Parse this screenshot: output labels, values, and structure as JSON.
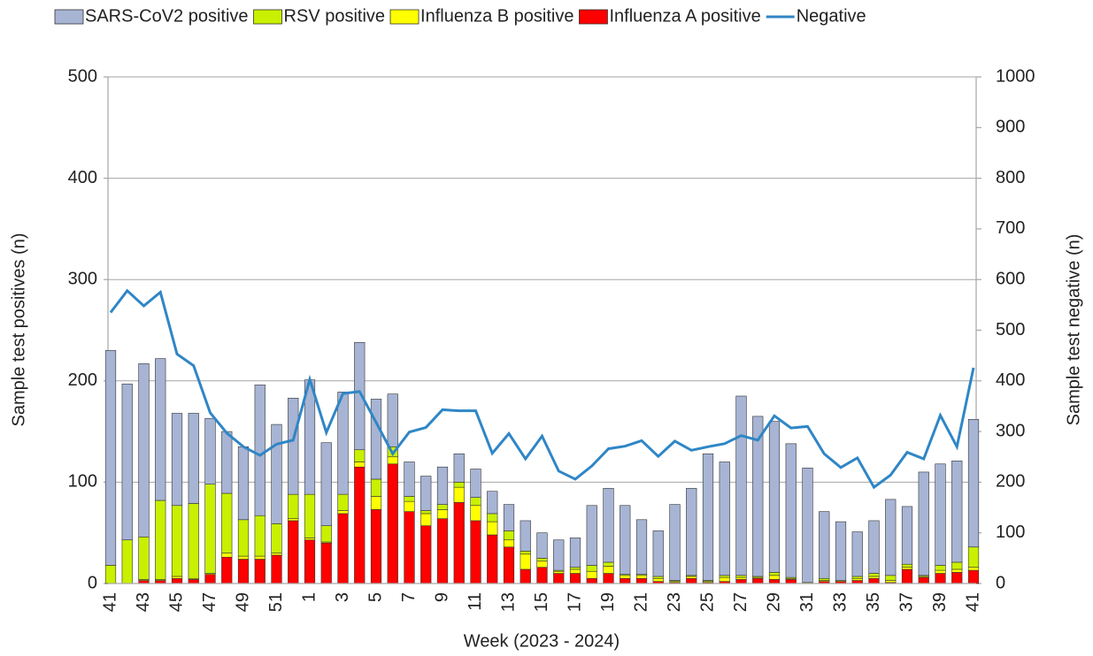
{
  "chart_data": {
    "type": "bar",
    "stacked": true,
    "x_label": "Week (2023 - 2024)",
    "y_label": "Sample test positives (n)",
    "y2_label": "Sample test negative (n)",
    "categories": [
      "41",
      null,
      "43",
      null,
      "45",
      null,
      "47",
      null,
      "49",
      null,
      "51",
      null,
      "1",
      null,
      "3",
      null,
      "5",
      null,
      "7",
      null,
      "9",
      null,
      "11",
      null,
      "13",
      null,
      "15",
      null,
      "17",
      null,
      "19",
      null,
      "21",
      null,
      "23",
      null,
      "25",
      null,
      "27",
      null,
      "29",
      null,
      "31",
      null,
      "33",
      null,
      "35",
      null,
      "37",
      null,
      "39",
      null,
      "41"
    ],
    "series": [
      {
        "name": "SARS-CoV2 positive",
        "color": "#a7b4d4",
        "values": [
          212,
          154,
          171,
          140,
          91,
          89,
          65,
          61,
          72,
          129,
          98,
          95,
          113,
          82,
          101,
          106,
          79,
          52,
          34,
          34,
          37,
          28,
          28,
          22,
          26,
          30,
          25,
          30,
          29,
          59,
          73,
          68,
          54,
          45,
          75,
          86,
          125,
          112,
          177,
          158,
          149,
          132,
          113,
          66,
          58,
          44,
          52,
          75,
          57,
          102,
          100,
          100,
          126
        ]
      },
      {
        "name": "RSV positive",
        "color": "#c8f000",
        "values": [
          18,
          43,
          42,
          78,
          70,
          74,
          88,
          59,
          36,
          40,
          29,
          24,
          43,
          16,
          16,
          12,
          17,
          10,
          5,
          3,
          5,
          5,
          8,
          8,
          9,
          3,
          3,
          1,
          2,
          6,
          4,
          1,
          1,
          2,
          1,
          1,
          1,
          2,
          2,
          1,
          3,
          1,
          1,
          2,
          1,
          2,
          3,
          5,
          3,
          1,
          5,
          7,
          20
        ]
      },
      {
        "name": "Influenza B positive",
        "color": "#ffff00",
        "values": [
          0,
          0,
          1,
          1,
          2,
          1,
          1,
          4,
          3,
          3,
          2,
          2,
          2,
          1,
          3,
          5,
          13,
          7,
          10,
          12,
          9,
          15,
          15,
          13,
          7,
          15,
          6,
          2,
          4,
          7,
          7,
          3,
          3,
          3,
          1,
          2,
          1,
          4,
          2,
          1,
          4,
          1,
          0,
          1,
          0,
          2,
          2,
          2,
          2,
          1,
          3,
          3,
          3
        ]
      },
      {
        "name": "Influenza A positive",
        "color": "#ff0000",
        "values": [
          0,
          0,
          3,
          3,
          5,
          4,
          9,
          26,
          24,
          24,
          28,
          62,
          43,
          40,
          69,
          115,
          73,
          118,
          71,
          57,
          64,
          80,
          62,
          48,
          36,
          14,
          16,
          10,
          10,
          5,
          10,
          5,
          5,
          2,
          1,
          5,
          1,
          2,
          4,
          5,
          4,
          4,
          0,
          2,
          2,
          3,
          5,
          1,
          14,
          6,
          10,
          11,
          13
        ]
      },
      {
        "name": "Negative",
        "color": "#2f86c6",
        "axis": "y2",
        "values": [
          535,
          578,
          548,
          575,
          453,
          430,
          337,
          297,
          270,
          253,
          275,
          283,
          403,
          298,
          375,
          379,
          318,
          256,
          299,
          308,
          343,
          341,
          341,
          257,
          296,
          246,
          291,
          222,
          206,
          232,
          266,
          271,
          282,
          251,
          281,
          263,
          270,
          276,
          292,
          283,
          331,
          307,
          310,
          256,
          229,
          248,
          190,
          214,
          259,
          246,
          332,
          270,
          426
        ]
      }
    ],
    "ylim": [
      0,
      500
    ],
    "yticks": [
      0,
      100,
      200,
      300,
      400,
      500
    ],
    "y2lim": [
      0,
      1000
    ],
    "y2ticks": [
      0,
      100,
      200,
      300,
      400,
      500,
      600,
      700,
      800,
      900,
      1000
    ],
    "grid": true,
    "legend": "top"
  }
}
